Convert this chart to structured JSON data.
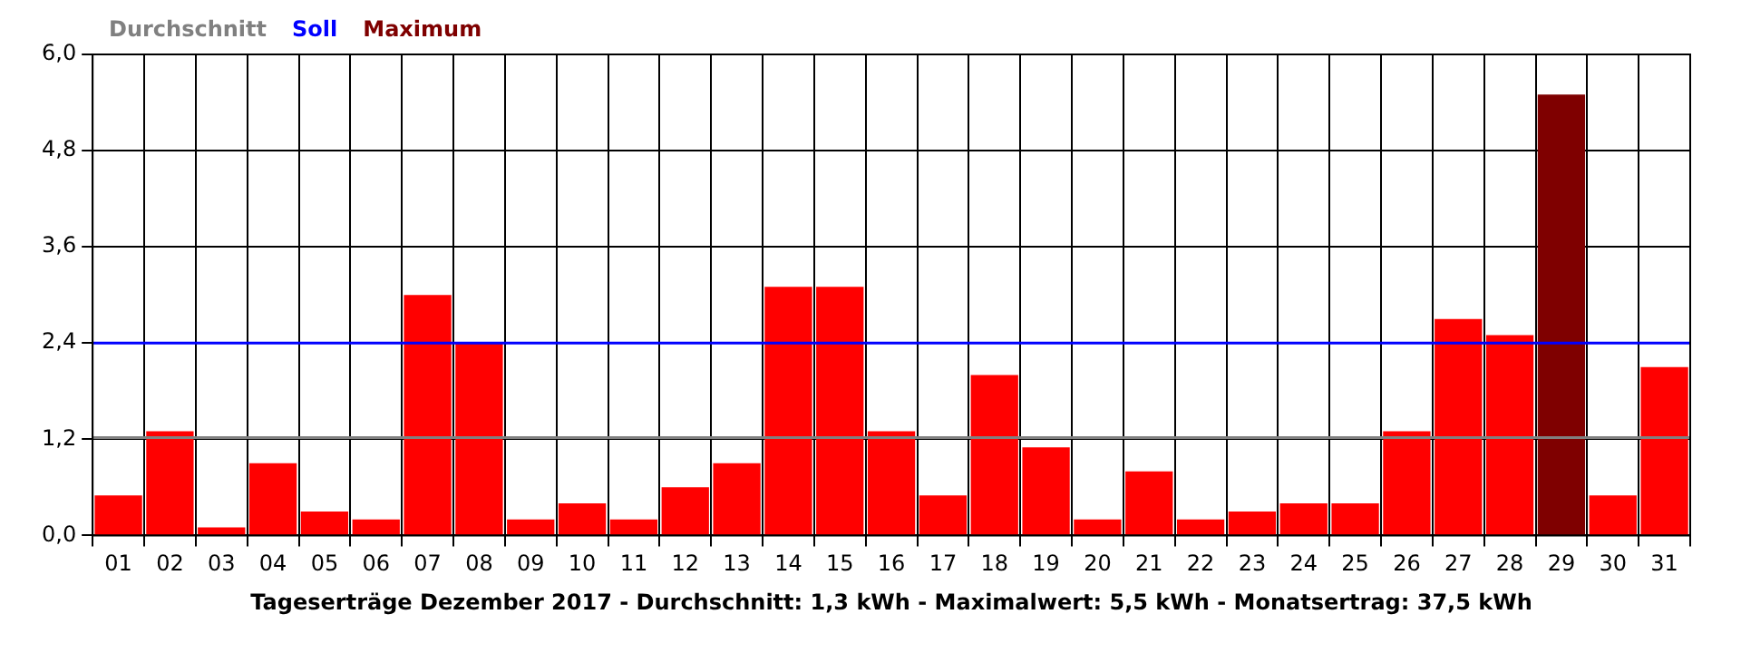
{
  "chart_data": {
    "type": "bar",
    "xlabel": "Tageserträge Dezember 2017 - Durchschnitt: 1,3 kWh - Maximalwert: 5,5 kWh - Monatsertrag: 37,5 kWh",
    "categories": [
      "01",
      "02",
      "03",
      "04",
      "05",
      "06",
      "07",
      "08",
      "09",
      "10",
      "11",
      "12",
      "13",
      "14",
      "15",
      "16",
      "17",
      "18",
      "19",
      "20",
      "21",
      "22",
      "23",
      "24",
      "25",
      "26",
      "27",
      "28",
      "29",
      "30",
      "31"
    ],
    "stacked": true,
    "series": [
      {
        "color": "#ff0000",
        "values": [
          0.5,
          1.3,
          0.1,
          0.9,
          0.3,
          0.2,
          3.0,
          2.4,
          0.2,
          0.4,
          0.2,
          0.6,
          0.9,
          3.1,
          3.1,
          1.3,
          0.5,
          2.0,
          1.1,
          0.2,
          0.8,
          0.2,
          0.3,
          0.4,
          0.4,
          1.3,
          2.7,
          2.5,
          null,
          0.5,
          2.1
        ]
      },
      {
        "name": "Maximum",
        "color": "#7f0000",
        "values": [
          null,
          null,
          null,
          null,
          null,
          null,
          null,
          null,
          null,
          null,
          null,
          null,
          null,
          null,
          null,
          null,
          null,
          null,
          null,
          null,
          null,
          null,
          null,
          null,
          null,
          null,
          null,
          null,
          5.5,
          null,
          null
        ]
      }
    ],
    "ylim": [
      0,
      6
    ],
    "yticks": [
      {
        "value": 0,
        "label": "0,0"
      },
      {
        "value": 1.2,
        "label": "1,2"
      },
      {
        "value": 2.4,
        "label": "2,4"
      },
      {
        "value": 3.6,
        "label": "3,6"
      },
      {
        "value": 4.8,
        "label": "4,8"
      },
      {
        "value": 6,
        "label": "6,0"
      }
    ],
    "ref_lines": [
      {
        "axis": "y",
        "value": 1.22,
        "label": "Durchschnitt",
        "color": "#808080"
      },
      {
        "axis": "y",
        "value": 2.4,
        "label": "Soll",
        "color": "#0000ff"
      }
    ],
    "grid": true,
    "legend": "top left"
  }
}
